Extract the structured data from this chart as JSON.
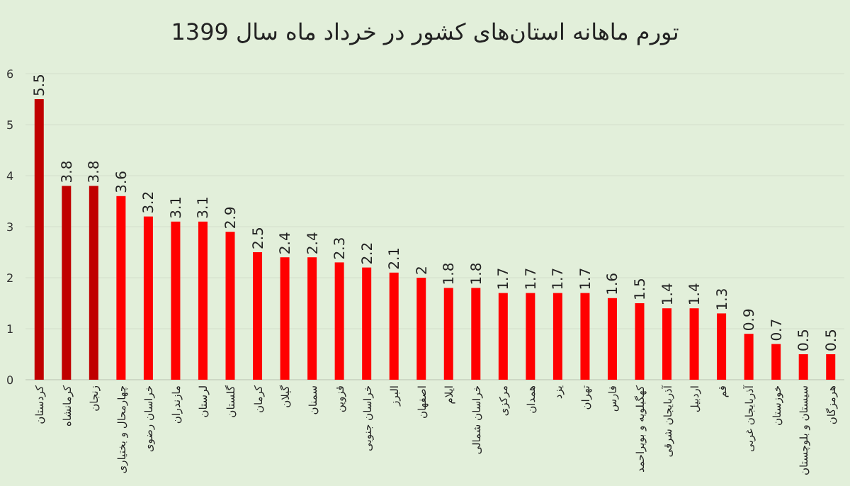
{
  "chart_data": {
    "type": "bar",
    "title": "تورم ماهانه استان‌های کشور در خرداد ماه سال 1399",
    "categories": [
      "کردستان",
      "کرمانشاه",
      "زنجان",
      "چهارمحال و بختیاری",
      "خراسان رضوی",
      "مازندران",
      "لرستان",
      "گلستان",
      "کرمان",
      "گیلان",
      "سمنان",
      "قزوین",
      "خراسان جنوبی",
      "البرز",
      "اصفهان",
      "ایلام",
      "خراسان شمالی",
      "مرکزی",
      "همدان",
      "یزد",
      "تهران",
      "فارس",
      "کهگیلویه و بویراحمد",
      "آذربایجان شرقی",
      "اردبیل",
      "قم",
      "آذربایجان غربی",
      "خوزستان",
      "سیستان و بلوچستان",
      "هرمزگان"
    ],
    "values": [
      5.5,
      3.8,
      3.8,
      3.6,
      3.2,
      3.1,
      3.1,
      2.9,
      2.5,
      2.4,
      2.4,
      2.3,
      2.2,
      2.1,
      2,
      1.8,
      1.8,
      1.7,
      1.7,
      1.7,
      1.7,
      1.6,
      1.5,
      1.4,
      1.4,
      1.3,
      0.9,
      0.7,
      0.5,
      0.5
    ],
    "value_labels": [
      "5.5",
      "3.8",
      "3.8",
      "3.6",
      "3.2",
      "3.1",
      "3.1",
      "2.9",
      "2.5",
      "2.4",
      "2.4",
      "2.3",
      "2.2",
      "2.1",
      "2",
      "1.8",
      "1.8",
      "1.7",
      "1.7",
      "1.7",
      "1.7",
      "1.6",
      "1.5",
      "1.4",
      "1.4",
      "1.3",
      "0.9",
      "0.7",
      "0.5",
      "0.5"
    ],
    "colors": [
      "#c00000",
      "#c00000",
      "#c00000",
      "#ff0000",
      "#ff0000",
      "#ff0000",
      "#ff0000",
      "#ff0000",
      "#ff0000",
      "#ff0000",
      "#ff0000",
      "#ff0000",
      "#ff0000",
      "#ff0000",
      "#ff0000",
      "#ff0000",
      "#ff0000",
      "#ff0000",
      "#ff0000",
      "#ff0000",
      "#ff0000",
      "#ff0000",
      "#ff0000",
      "#ff0000",
      "#ff0000",
      "#ff0000",
      "#ff0000",
      "#ff0000",
      "#ff0000",
      "#ff0000"
    ],
    "ylim": [
      0,
      6
    ],
    "yticks": [
      0,
      1,
      2,
      3,
      4,
      5,
      6
    ],
    "grid": "y"
  }
}
